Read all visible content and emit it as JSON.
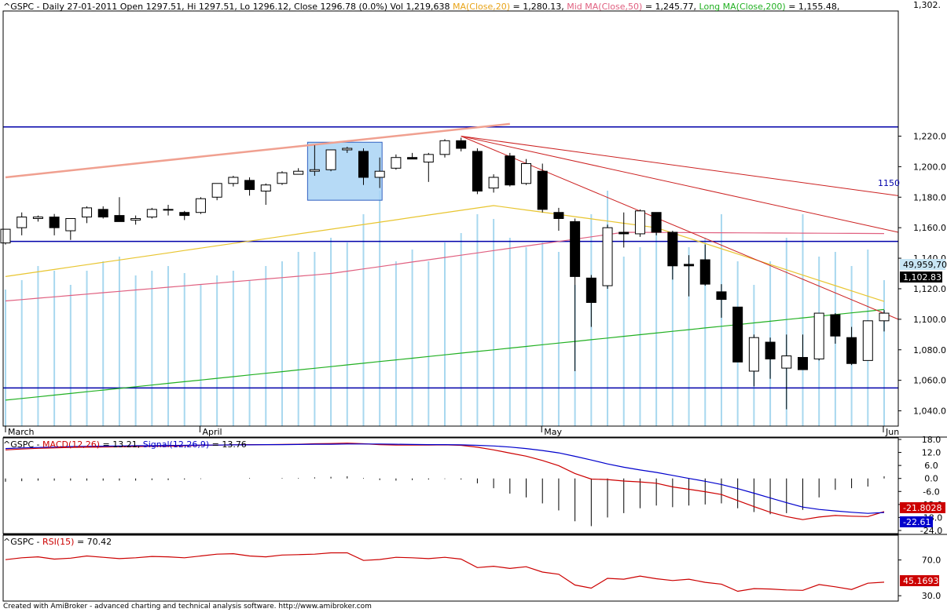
{
  "header": {
    "price": {
      "prefix": "^GSPC - Daily 27-01-2011 Open 1297.51, Hi 1297.51, Lo 1296.12, Close 1296.78 (0.0%) Vol 1,219,638",
      "ma20": "MA(Close,20)",
      "ma20_value": " = 1,280.13,",
      "ma50": "Mid MA(Close,50)",
      "ma50_value": " = 1,245.77,",
      "ma200": "Long MA(Close,200)",
      "ma200_value": " = 1,155.48,"
    },
    "macd": {
      "prefix": "^GSPC - ",
      "macd_label": "MACD(12,26)",
      "macd_value": " = 13.21, ",
      "signal_label": "Signal(12,26,9)",
      "signal_value": " = 13.76"
    },
    "rsi": {
      "prefix": "^GSPC - ",
      "rsi_label": "RSI(15)",
      "rsi_value": " = 70.42"
    }
  },
  "footer": "Created with AmiBroker - advanced charting and technical analysis software. http://www.amibroker.com",
  "chart_data": [
    {
      "type": "candlestick",
      "panel": "price",
      "y_axis_labels": [
        "1,302.",
        "1,220.0",
        "1,200.0",
        "1,180.0",
        "1,160.0",
        "1,140.0",
        "1,120.0",
        "1,100.0",
        "1,080.0",
        "1,060.0",
        "1,040.0"
      ],
      "ylim": [
        1030,
        1302
      ],
      "x_labels": [
        "March",
        "April",
        "May",
        "Jun"
      ],
      "annotations": {
        "line_label": "1150",
        "volume_marker": "49,959,70",
        "last_price_marker": "1,102.83"
      },
      "horizontal_levels": [
        1226,
        1151,
        1055
      ],
      "candles": [
        {
          "x": 0,
          "o": 1150,
          "h": 1159,
          "l": 1149,
          "c": 1159
        },
        {
          "x": 1,
          "o": 1160,
          "h": 1170,
          "l": 1155,
          "c": 1167
        },
        {
          "x": 2,
          "o": 1166,
          "h": 1168,
          "l": 1164,
          "c": 1167
        },
        {
          "x": 3,
          "o": 1167,
          "h": 1169,
          "l": 1155,
          "c": 1160
        },
        {
          "x": 4,
          "o": 1158,
          "h": 1166,
          "l": 1152,
          "c": 1166
        },
        {
          "x": 5,
          "o": 1167,
          "h": 1174,
          "l": 1163,
          "c": 1173
        },
        {
          "x": 6,
          "o": 1172,
          "h": 1174,
          "l": 1166,
          "c": 1167
        },
        {
          "x": 7,
          "o": 1168,
          "h": 1180,
          "l": 1165,
          "c": 1164
        },
        {
          "x": 8,
          "o": 1165,
          "h": 1168,
          "l": 1162,
          "c": 1166
        },
        {
          "x": 9,
          "o": 1167,
          "h": 1173,
          "l": 1166,
          "c": 1172
        },
        {
          "x": 10,
          "o": 1172,
          "h": 1175,
          "l": 1168,
          "c": 1172
        },
        {
          "x": 11,
          "o": 1170,
          "h": 1171,
          "l": 1165,
          "c": 1168
        },
        {
          "x": 12,
          "o": 1170,
          "h": 1180,
          "l": 1169,
          "c": 1179
        },
        {
          "x": 13,
          "o": 1180,
          "h": 1189,
          "l": 1178,
          "c": 1189
        },
        {
          "x": 14,
          "o": 1189,
          "h": 1194,
          "l": 1187,
          "c": 1193
        },
        {
          "x": 15,
          "o": 1191,
          "h": 1193,
          "l": 1181,
          "c": 1185
        },
        {
          "x": 16,
          "o": 1184,
          "h": 1189,
          "l": 1175,
          "c": 1188
        },
        {
          "x": 17,
          "o": 1189,
          "h": 1197,
          "l": 1188,
          "c": 1196
        },
        {
          "x": 18,
          "o": 1195,
          "h": 1199,
          "l": 1195,
          "c": 1197
        },
        {
          "x": 19,
          "o": 1197,
          "h": 1214,
          "l": 1194,
          "c": 1198
        },
        {
          "x": 20,
          "o": 1198,
          "h": 1211,
          "l": 1197,
          "c": 1211
        },
        {
          "x": 21,
          "o": 1211,
          "h": 1213,
          "l": 1209,
          "c": 1212
        },
        {
          "x": 22,
          "o": 1210,
          "h": 1212,
          "l": 1188,
          "c": 1193
        },
        {
          "x": 23,
          "o": 1193,
          "h": 1206,
          "l": 1186,
          "c": 1197
        },
        {
          "x": 24,
          "o": 1199,
          "h": 1208,
          "l": 1198,
          "c": 1206
        },
        {
          "x": 25,
          "o": 1206,
          "h": 1209,
          "l": 1206,
          "c": 1205
        },
        {
          "x": 26,
          "o": 1203,
          "h": 1209,
          "l": 1190,
          "c": 1208
        },
        {
          "x": 27,
          "o": 1208,
          "h": 1218,
          "l": 1206,
          "c": 1217
        },
        {
          "x": 28,
          "o": 1217,
          "h": 1219,
          "l": 1210,
          "c": 1212
        },
        {
          "x": 29,
          "o": 1210,
          "h": 1212,
          "l": 1182,
          "c": 1184
        },
        {
          "x": 30,
          "o": 1186,
          "h": 1195,
          "l": 1183,
          "c": 1193
        },
        {
          "x": 31,
          "o": 1207,
          "h": 1209,
          "l": 1187,
          "c": 1188
        },
        {
          "x": 32,
          "o": 1189,
          "h": 1205,
          "l": 1188,
          "c": 1202
        },
        {
          "x": 33,
          "o": 1197,
          "h": 1202,
          "l": 1170,
          "c": 1172
        },
        {
          "x": 34,
          "o": 1170,
          "h": 1173,
          "l": 1158,
          "c": 1166
        },
        {
          "x": 35,
          "o": 1164,
          "h": 1166,
          "l": 1066,
          "c": 1128
        },
        {
          "x": 36,
          "o": 1127,
          "h": 1129,
          "l": 1095,
          "c": 1111
        },
        {
          "x": 37,
          "o": 1122,
          "h": 1162,
          "l": 1120,
          "c": 1160
        },
        {
          "x": 38,
          "o": 1157,
          "h": 1170,
          "l": 1147,
          "c": 1156
        },
        {
          "x": 39,
          "o": 1156,
          "h": 1172,
          "l": 1154,
          "c": 1171
        },
        {
          "x": 40,
          "o": 1170,
          "h": 1170,
          "l": 1155,
          "c": 1157
        },
        {
          "x": 41,
          "o": 1157,
          "h": 1158,
          "l": 1126,
          "c": 1135
        },
        {
          "x": 42,
          "o": 1136,
          "h": 1142,
          "l": 1115,
          "c": 1135
        },
        {
          "x": 43,
          "o": 1139,
          "h": 1149,
          "l": 1122,
          "c": 1123
        },
        {
          "x": 44,
          "o": 1118,
          "h": 1123,
          "l": 1101,
          "c": 1113
        },
        {
          "x": 45,
          "o": 1108,
          "h": 1108,
          "l": 1072,
          "c": 1072
        },
        {
          "x": 46,
          "o": 1066,
          "h": 1090,
          "l": 1056,
          "c": 1088
        },
        {
          "x": 47,
          "o": 1085,
          "h": 1088,
          "l": 1061,
          "c": 1074
        },
        {
          "x": 48,
          "o": 1068,
          "h": 1090,
          "l": 1041,
          "c": 1076
        },
        {
          "x": 49,
          "o": 1075,
          "h": 1090,
          "l": 1067,
          "c": 1067
        },
        {
          "x": 50,
          "o": 1074,
          "h": 1104,
          "l": 1073,
          "c": 1104
        },
        {
          "x": 51,
          "o": 1103,
          "h": 1104,
          "l": 1084,
          "c": 1089
        },
        {
          "x": 52,
          "o": 1088,
          "h": 1095,
          "l": 1070,
          "c": 1071
        },
        {
          "x": 53,
          "o": 1073,
          "h": 1099,
          "l": 1073,
          "c": 1099
        },
        {
          "x": 54,
          "o": 1099,
          "h": 1106,
          "l": 1092,
          "c": 1104
        }
      ],
      "volume_relative": [
        0.58,
        0.62,
        0.68,
        0.66,
        0.6,
        0.66,
        0.7,
        0.72,
        0.64,
        0.66,
        0.68,
        0.65,
        0.6,
        0.64,
        0.66,
        0.62,
        0.68,
        0.7,
        0.74,
        0.74,
        0.8,
        0.78,
        0.9,
        1.0,
        0.7,
        0.75,
        0.7,
        0.78,
        0.82,
        0.9,
        0.88,
        0.8,
        0.76,
        0.78,
        0.74,
        0.6,
        0.9,
        1.0,
        0.72,
        0.76,
        0.84,
        0.8,
        0.76,
        0.8,
        0.9,
        0.7,
        0.6,
        0.7,
        0.8,
        0.9,
        0.72,
        0.74,
        0.68,
        0.75,
        0.62
      ]
    },
    {
      "type": "line",
      "panel": "macd",
      "y_axis_labels": [
        "18.0",
        "12.0",
        "6.0",
        "0.0",
        "-6.0",
        "-12.0",
        "-18.0",
        "-24.0"
      ],
      "ylim": [
        -24,
        18
      ],
      "series": [
        {
          "name": "MACD(12,26)",
          "color": "#cc0000",
          "values": [
            13.2,
            13.6,
            13.9,
            14.1,
            14.3,
            14.4,
            14.5,
            14.6,
            14.7,
            14.8,
            14.9,
            15.1,
            15.3,
            15.4,
            15.5,
            15.6,
            15.6,
            15.7,
            15.8,
            16.0,
            16.1,
            16.3,
            16.0,
            15.6,
            15.4,
            15.4,
            15.4,
            15.5,
            15.3,
            14.4,
            13.2,
            11.7,
            10.3,
            8.3,
            5.9,
            2.3,
            -0.3,
            -0.5,
            -1.2,
            -1.6,
            -2.2,
            -3.9,
            -5.0,
            -6.1,
            -7.4,
            -10.2,
            -13.0,
            -15.6,
            -17.6,
            -19.0,
            -17.8,
            -17.1,
            -17.4,
            -17.6,
            -15.3
          ]
        },
        {
          "name": "Signal(12,26,9)",
          "color": "#0000cc",
          "values": [
            13.8,
            14.1,
            14.3,
            14.5,
            14.7,
            14.8,
            14.9,
            15.0,
            15.1,
            15.1,
            15.2,
            15.3,
            15.4,
            15.4,
            15.5,
            15.5,
            15.6,
            15.6,
            15.7,
            15.8,
            15.8,
            15.9,
            15.9,
            15.9,
            15.8,
            15.7,
            15.6,
            15.6,
            15.5,
            15.3,
            15.0,
            14.5,
            13.8,
            12.9,
            11.8,
            10.2,
            8.5,
            6.7,
            5.2,
            3.9,
            2.8,
            1.4,
            0.0,
            -1.3,
            -2.8,
            -4.7,
            -6.8,
            -9.0,
            -11.2,
            -13.2,
            -14.3,
            -15.0,
            -15.6,
            -16.1,
            -15.7
          ]
        }
      ],
      "value_markers": [
        "-21.8028",
        "-22.61"
      ]
    },
    {
      "type": "line",
      "panel": "rsi",
      "y_axis_labels": [
        "70.0",
        "30.0"
      ],
      "ylim": [
        24,
        96
      ],
      "series": [
        {
          "name": "RSI(15)",
          "color": "#cc0000",
          "values": [
            70.4,
            72.5,
            73.5,
            71.0,
            72.0,
            74.5,
            73.0,
            71.5,
            72.5,
            74.0,
            73.5,
            72.5,
            74.5,
            76.5,
            77.0,
            74.5,
            73.5,
            75.5,
            76.0,
            76.5,
            78.0,
            78.0,
            69.5,
            70.5,
            73.0,
            72.5,
            71.5,
            73.0,
            71.0,
            61.5,
            63.0,
            60.5,
            62.5,
            56.5,
            54.0,
            42.0,
            38.5,
            49.5,
            48.5,
            52.0,
            49.0,
            47.0,
            48.5,
            45.0,
            43.0,
            35.0,
            38.0,
            37.5,
            36.5,
            36.0,
            42.5,
            40.0,
            37.0,
            44.0,
            45.2
          ]
        }
      ],
      "value_markers": [
        "45.1693"
      ]
    }
  ]
}
